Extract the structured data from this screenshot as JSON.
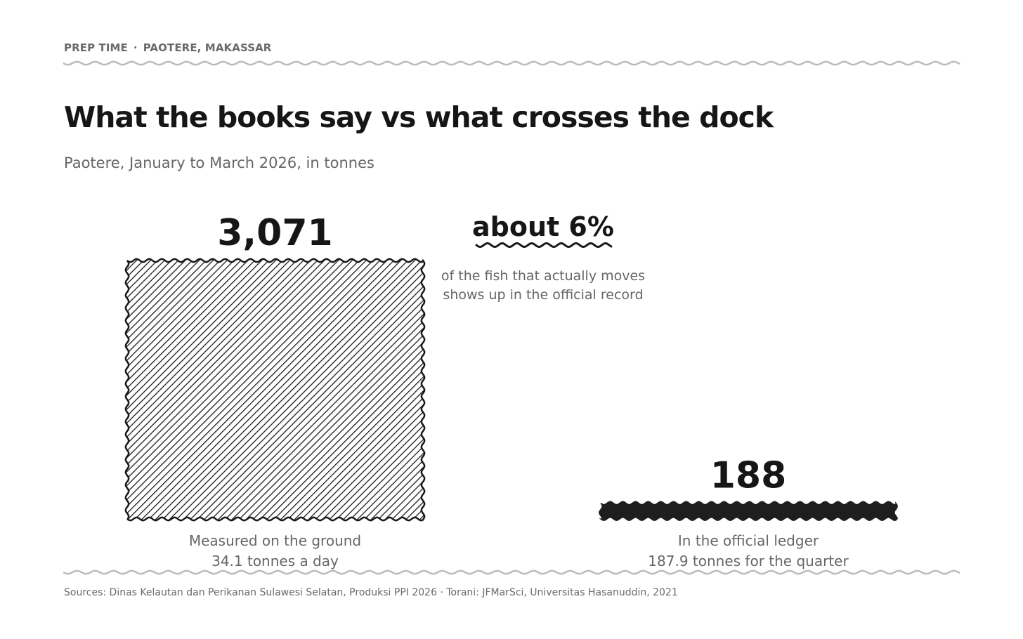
{
  "kicker": {
    "section": "PREP TIME",
    "separator": "·",
    "location": "PAOTERE, MAKASSAR"
  },
  "title": "What the books say vs what crosses the dock",
  "subtitle": "Paotere, January to March 2026, in tonnes",
  "callout": {
    "headline": "about 6%",
    "line1": "of the fish that actually moves",
    "line2": "shows up in the official record"
  },
  "source": "Sources: Dinas Kelautan dan Perikanan Sulawesi Selatan, Produksi PPI 2026 · Torani: JFMarSci, Universitas Hasanuddin, 2021",
  "colors": {
    "ink": "#1a1a1a",
    "muted": "#666666",
    "rule": "#bbbbbb",
    "ledger_bar": "#1e1e1e"
  },
  "chart_data": {
    "type": "bar",
    "categories": [
      "Measured on the ground",
      "In the official ledger"
    ],
    "values": [
      3071,
      188
    ],
    "value_labels": [
      "3,071",
      "188"
    ],
    "sublabels": [
      "34.1 tonnes a day",
      "187.9 tonnes for the quarter"
    ],
    "fills": [
      "hatched",
      "solid"
    ],
    "ylim": [
      0,
      3071
    ],
    "grid": false,
    "legend": "none"
  }
}
